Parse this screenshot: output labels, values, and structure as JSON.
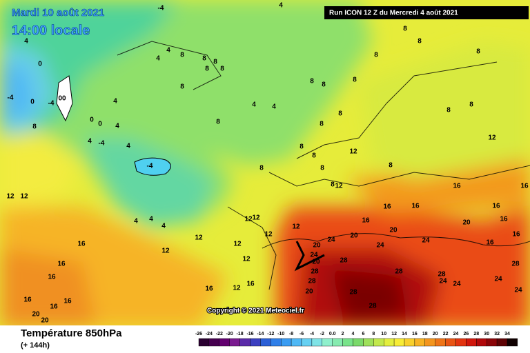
{
  "header": {
    "title": "Mardi 10 août 2021",
    "subtitle": "14:00 locale",
    "run": "Run ICON 12 Z du Mercredi 4 août 2021"
  },
  "copyright": "Copyright © 2021 Meteociel.fr",
  "footer": {
    "field": "Température 850hPa",
    "lead": "(+ 144h)"
  },
  "scale": {
    "labels": [
      "-26",
      "-24",
      "-22",
      "-20",
      "-18",
      "-16",
      "-14",
      "-12",
      "-10",
      "-8",
      "-6",
      "-4",
      "-2",
      "0.0",
      "2",
      "4",
      "6",
      "8",
      "10",
      "12",
      "14",
      "16",
      "18",
      "20",
      "22",
      "24",
      "26",
      "28",
      "30",
      "32",
      "34"
    ],
    "colors": [
      "#2a0030",
      "#46004f",
      "#62006f",
      "#7a1a8f",
      "#5a2aa8",
      "#3b3fc0",
      "#2b5fd6",
      "#2f7fe8",
      "#3a9cf2",
      "#4fb8f5",
      "#66d0f2",
      "#7fe3e6",
      "#8ff0cc",
      "#86ebb0",
      "#78e38a",
      "#7ad96a",
      "#9ee05a",
      "#c2e84c",
      "#e3ee3e",
      "#f7ec36",
      "#f8d02c",
      "#f7b324",
      "#f3951e",
      "#ee7418",
      "#e85414",
      "#e23410",
      "#d0160c",
      "#b0080a",
      "#8a0408",
      "#5e0204",
      "#100000"
    ]
  },
  "contour_labels": [
    "-4",
    "4",
    "4",
    "0",
    "-4",
    "0",
    "-4",
    "00",
    "0",
    "0",
    "8",
    "4",
    "-4",
    "4",
    "4",
    "4",
    "-4",
    "4",
    "4",
    "8",
    "8",
    "8",
    "8",
    "8",
    "8",
    "8",
    "4",
    "4",
    "8",
    "8",
    "8",
    "8",
    "8",
    "8",
    "8",
    "8",
    "8",
    "8",
    "12",
    "8",
    "8",
    "8",
    "8",
    "8",
    "8",
    "8",
    "12",
    "12",
    "12",
    "4",
    "4",
    "4",
    "12",
    "12",
    "12",
    "12",
    "12",
    "12",
    "12",
    "16",
    "16",
    "16",
    "12",
    "16",
    "12",
    "16",
    "16",
    "16",
    "16",
    "20",
    "20",
    "12",
    "16",
    "16",
    "16",
    "16",
    "16",
    "16",
    "16",
    "16",
    "16",
    "20",
    "20",
    "20",
    "24",
    "24",
    "24",
    "24",
    "20",
    "28",
    "28",
    "28",
    "20",
    "28",
    "28",
    "28",
    "28",
    "24",
    "24",
    "24",
    "24",
    "28",
    "20"
  ]
}
